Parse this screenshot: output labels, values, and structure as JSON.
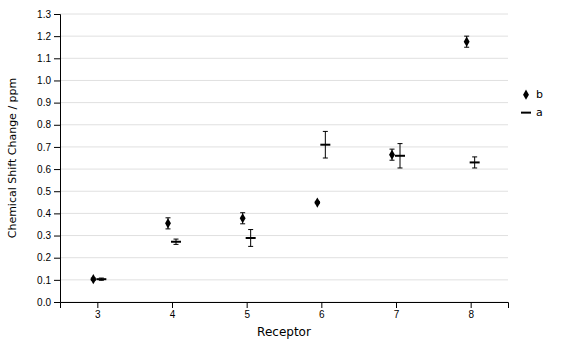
{
  "chart_data": {
    "type": "scatter",
    "x": [
      3,
      4,
      5,
      6,
      7,
      8
    ],
    "series": [
      {
        "name": "b",
        "color": "black",
        "marker": "diamond",
        "values": [
          0.103,
          0.355,
          0.378,
          0.449,
          0.665,
          1.175
        ],
        "errors": [
          0.005,
          0.025,
          0.025,
          0.005,
          0.025,
          0.025
        ]
      },
      {
        "name": "a",
        "color": "black",
        "marker": "dash",
        "values": [
          0.103,
          0.272,
          0.289,
          0.71,
          0.66,
          0.63
        ],
        "errors": [
          0.005,
          0.012,
          0.038,
          0.06,
          0.055,
          0.025
        ]
      }
    ],
    "x_label": "Receptor",
    "y_label": "Chemical Shift Change / ppm",
    "xlim": [
      2.5,
      8.5
    ],
    "ylim": [
      0,
      1.3
    ],
    "xticks": [
      3,
      4,
      5,
      6,
      7,
      8
    ],
    "yticks": [
      {
        "value": 0,
        "label": "0.0"
      },
      0.1,
      0.2,
      0.3,
      0.4,
      0.5,
      0.6,
      0.7,
      0.8,
      0.9,
      {
        "value": 1,
        "label": "1.0"
      },
      1.1,
      1.2,
      1.3
    ],
    "grid": true,
    "legend": "right"
  }
}
